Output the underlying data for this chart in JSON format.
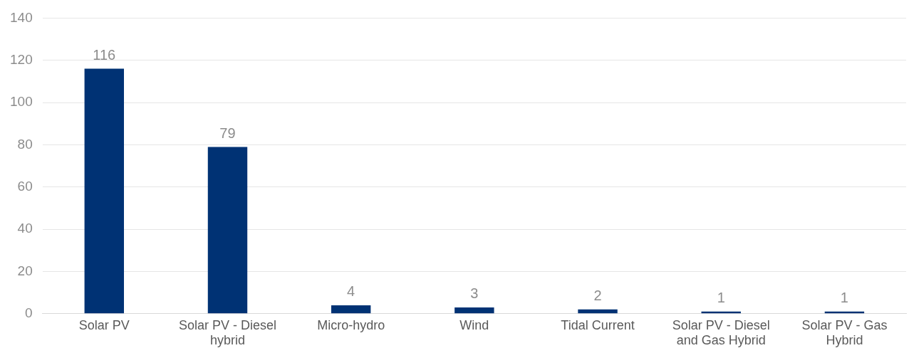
{
  "chart_data": {
    "type": "bar",
    "categories": [
      "Solar PV",
      "Solar PV - Diesel hybrid",
      "Micro-hydro",
      "Wind",
      "Tidal Current",
      "Solar PV - Diesel and Gas Hybrid",
      "Solar PV - Gas Hybrid"
    ],
    "values": [
      116,
      79,
      4,
      3,
      2,
      1,
      1
    ],
    "color": "#003274",
    "ylim": [
      0,
      140
    ],
    "yticks": [
      0,
      20,
      40,
      60,
      80,
      100,
      120,
      140
    ],
    "grid": "y",
    "data_labels": true,
    "legend": false
  }
}
